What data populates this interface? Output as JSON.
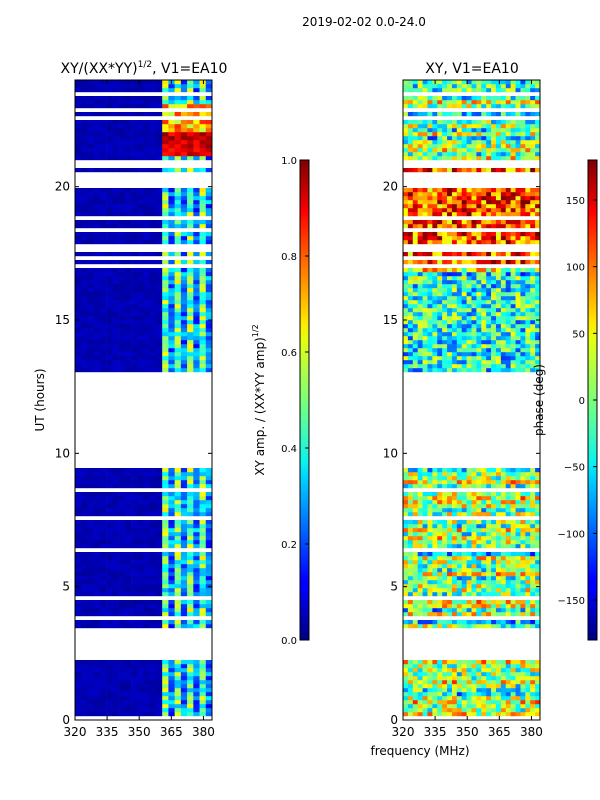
{
  "figure": {
    "suptitle": "2019-02-02 0.0-24.0",
    "xlabel_shared": "frequency (MHz)"
  },
  "chart_data": [
    {
      "type": "heatmap",
      "title_prefix": "XY/(XX*YY)",
      "title_exponent": "1/2",
      "title_suffix": ", V1=EA10",
      "xlabel": "",
      "ylabel": "UT (hours)",
      "xlim": [
        320,
        384
      ],
      "ylim": [
        0,
        24
      ],
      "xticks": [
        320,
        335,
        350,
        365,
        380
      ],
      "yticks": [
        0,
        5,
        10,
        15,
        20
      ],
      "colorbar": {
        "label_prefix": "XY amp. / (XX*YY amp)",
        "label_exponent": "1/2",
        "range": [
          0.0,
          1.0
        ],
        "ticks": [
          "0.0",
          "0.2",
          "0.4",
          "0.6",
          "0.8",
          "1.0"
        ],
        "colormap": "jet"
      },
      "blank_ut_bands": [
        [
          2.3,
          3.4
        ],
        [
          9.6,
          13.0
        ],
        [
          20.1,
          20.5
        ]
      ],
      "signal_channels_mhz": [
        361,
        385
      ],
      "background_value": 0.03
    },
    {
      "type": "heatmap",
      "title": "XY, V1=EA10",
      "xlabel": "frequency (MHz)",
      "ylabel": "",
      "xlim": [
        320,
        384
      ],
      "ylim": [
        0,
        24
      ],
      "xticks": [
        320,
        335,
        350,
        365,
        380
      ],
      "yticks": [
        0,
        5,
        10,
        15,
        20
      ],
      "colorbar": {
        "label": "phase (deg)",
        "range": [
          -180,
          180
        ],
        "ticks": [
          "-150",
          "-100",
          "-50",
          "0",
          "50",
          "100",
          "150"
        ],
        "colormap": "jet"
      },
      "blank_ut_bands": [
        [
          2.3,
          3.4
        ],
        [
          9.6,
          13.0
        ],
        [
          20.1,
          20.5
        ]
      ]
    }
  ]
}
